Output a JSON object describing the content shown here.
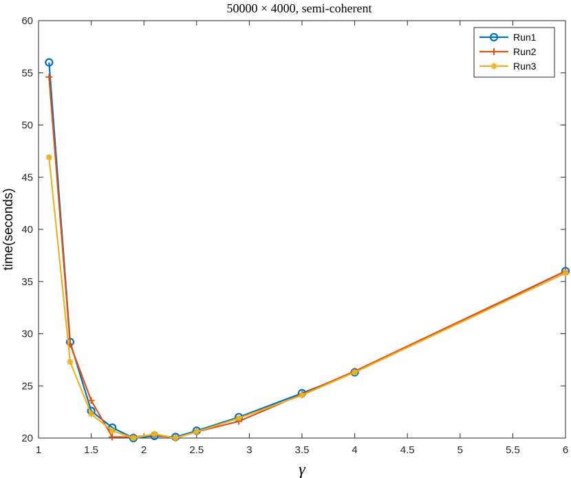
{
  "chart_data": {
    "type": "line",
    "title": "50000 × 4000, semi-coherent",
    "xlabel": "γ",
    "ylabel": "time(seconds)",
    "xlim": [
      1,
      6
    ],
    "ylim": [
      20,
      60
    ],
    "xticks": [
      "1",
      "1.5",
      "2",
      "2.5",
      "3",
      "3.5",
      "4",
      "4.5",
      "5",
      "5.5",
      "6"
    ],
    "yticks": [
      "20",
      "25",
      "30",
      "35",
      "40",
      "45",
      "50",
      "55",
      "60"
    ],
    "grid": false,
    "legend_position": "top-right",
    "series": [
      {
        "name": "Run1",
        "color": "#0072BD",
        "marker": "circle",
        "x": [
          1.1,
          1.3,
          1.5,
          1.7,
          1.9,
          2.1,
          2.3,
          2.5,
          2.9,
          3.5,
          4,
          6
        ],
        "y": [
          56.0,
          29.2,
          22.6,
          21.0,
          20.0,
          20.2,
          20.1,
          20.7,
          22.0,
          24.3,
          26.3,
          36.0
        ]
      },
      {
        "name": "Run2",
        "color": "#D95319",
        "marker": "plus",
        "x": [
          1.1,
          1.3,
          1.5,
          1.7,
          1.9,
          2.1,
          2.3,
          2.5,
          2.9,
          3.5,
          4,
          6
        ],
        "y": [
          54.6,
          29.0,
          23.6,
          20.1,
          20.1,
          20.3,
          20.0,
          20.6,
          21.6,
          24.2,
          26.4,
          36.0
        ]
      },
      {
        "name": "Run3",
        "color": "#EDB120",
        "marker": "asterisk",
        "x": [
          1.1,
          1.3,
          1.5,
          1.7,
          1.9,
          2.1,
          2.3,
          2.5,
          2.9,
          3.5,
          4,
          6
        ],
        "y": [
          46.9,
          27.3,
          22.3,
          20.7,
          20.0,
          20.4,
          20.0,
          20.6,
          21.9,
          24.1,
          26.3,
          35.8
        ]
      }
    ]
  }
}
